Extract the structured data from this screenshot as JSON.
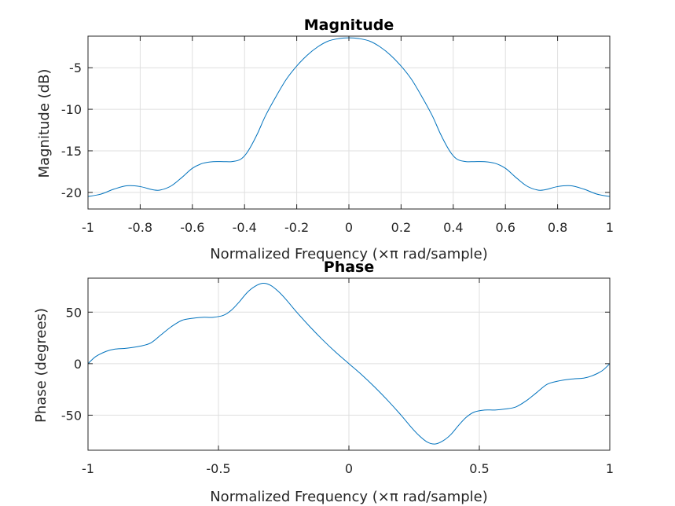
{
  "chart_data": [
    {
      "type": "line",
      "title": "Magnitude",
      "xlabel": "Normalized Frequency  (×π rad/sample)",
      "ylabel": "Magnitude (dB)",
      "xlim": [
        -1,
        1
      ],
      "ylim": [
        -22,
        -1.2
      ],
      "xticks": [
        -1,
        -0.8,
        -0.6,
        -0.4,
        -0.2,
        0,
        0.2,
        0.4,
        0.6,
        0.8,
        1
      ],
      "xtick_labels": [
        "-1",
        "-0.8",
        "-0.6",
        "-0.4",
        "-0.2",
        "0",
        "0.2",
        "0.4",
        "0.6",
        "0.8",
        "1"
      ],
      "yticks": [
        -20,
        -15,
        -10,
        -5
      ],
      "ytick_labels": [
        "-20",
        "-15",
        "-10",
        "-5"
      ],
      "grid": true,
      "color": "#0072bd",
      "x": [
        -1,
        -0.95,
        -0.9,
        -0.85,
        -0.8,
        -0.75,
        -0.72,
        -0.68,
        -0.64,
        -0.6,
        -0.56,
        -0.52,
        -0.48,
        -0.45,
        -0.42,
        -0.4,
        -0.38,
        -0.35,
        -0.32,
        -0.28,
        -0.24,
        -0.2,
        -0.16,
        -0.12,
        -0.08,
        -0.04,
        0,
        0.04,
        0.08,
        0.12,
        0.16,
        0.2,
        0.24,
        0.28,
        0.32,
        0.35,
        0.38,
        0.4,
        0.42,
        0.45,
        0.48,
        0.52,
        0.56,
        0.6,
        0.64,
        0.68,
        0.72,
        0.75,
        0.8,
        0.85,
        0.9,
        0.95,
        1
      ],
      "y": [
        -20.5,
        -20.2,
        -19.6,
        -19.2,
        -19.3,
        -19.7,
        -19.7,
        -19.2,
        -18.2,
        -17.1,
        -16.5,
        -16.3,
        -16.3,
        -16.3,
        -16.1,
        -15.6,
        -14.7,
        -12.9,
        -10.8,
        -8.5,
        -6.4,
        -4.8,
        -3.5,
        -2.5,
        -1.8,
        -1.5,
        -1.4,
        -1.5,
        -1.8,
        -2.5,
        -3.5,
        -4.8,
        -6.4,
        -8.5,
        -10.8,
        -12.9,
        -14.7,
        -15.6,
        -16.1,
        -16.3,
        -16.3,
        -16.3,
        -16.5,
        -17.1,
        -18.2,
        -19.2,
        -19.7,
        -19.7,
        -19.3,
        -19.2,
        -19.6,
        -20.2,
        -20.5
      ]
    },
    {
      "type": "line",
      "title": "Phase",
      "xlabel": "Normalized Frequency  (×π rad/sample)",
      "ylabel": "Phase (degrees)",
      "xlim": [
        -1,
        1
      ],
      "ylim": [
        -84,
        83
      ],
      "xticks": [
        -1,
        -0.5,
        0,
        0.5,
        1
      ],
      "xtick_labels": [
        "-1",
        "-0.5",
        "0",
        "0.5",
        "1"
      ],
      "yticks": [
        -50,
        0,
        50
      ],
      "ytick_labels": [
        "-50",
        "0",
        "50"
      ],
      "grid": true,
      "color": "#0072bd",
      "x": [
        -1,
        -0.97,
        -0.93,
        -0.9,
        -0.85,
        -0.8,
        -0.76,
        -0.72,
        -0.68,
        -0.64,
        -0.6,
        -0.56,
        -0.52,
        -0.48,
        -0.45,
        -0.42,
        -0.39,
        -0.36,
        -0.33,
        -0.3,
        -0.27,
        -0.24,
        -0.2,
        -0.15,
        -0.1,
        -0.05,
        0,
        0.05,
        0.1,
        0.15,
        0.2,
        0.24,
        0.27,
        0.3,
        0.33,
        0.36,
        0.39,
        0.42,
        0.45,
        0.48,
        0.52,
        0.56,
        0.6,
        0.64,
        0.68,
        0.72,
        0.76,
        0.8,
        0.85,
        0.9,
        0.93,
        0.97,
        1
      ],
      "y": [
        0,
        7,
        12,
        14,
        15,
        17,
        20,
        28,
        36,
        42,
        44,
        45,
        45,
        47,
        52,
        60,
        69,
        75,
        78,
        76,
        70,
        62,
        50,
        36,
        23,
        11,
        0,
        -11,
        -23,
        -36,
        -50,
        -62,
        -70,
        -76,
        -78,
        -75,
        -69,
        -60,
        -52,
        -47,
        -45,
        -45,
        -44,
        -42,
        -36,
        -28,
        -20,
        -17,
        -15,
        -14,
        -12,
        -7,
        0
      ]
    }
  ]
}
